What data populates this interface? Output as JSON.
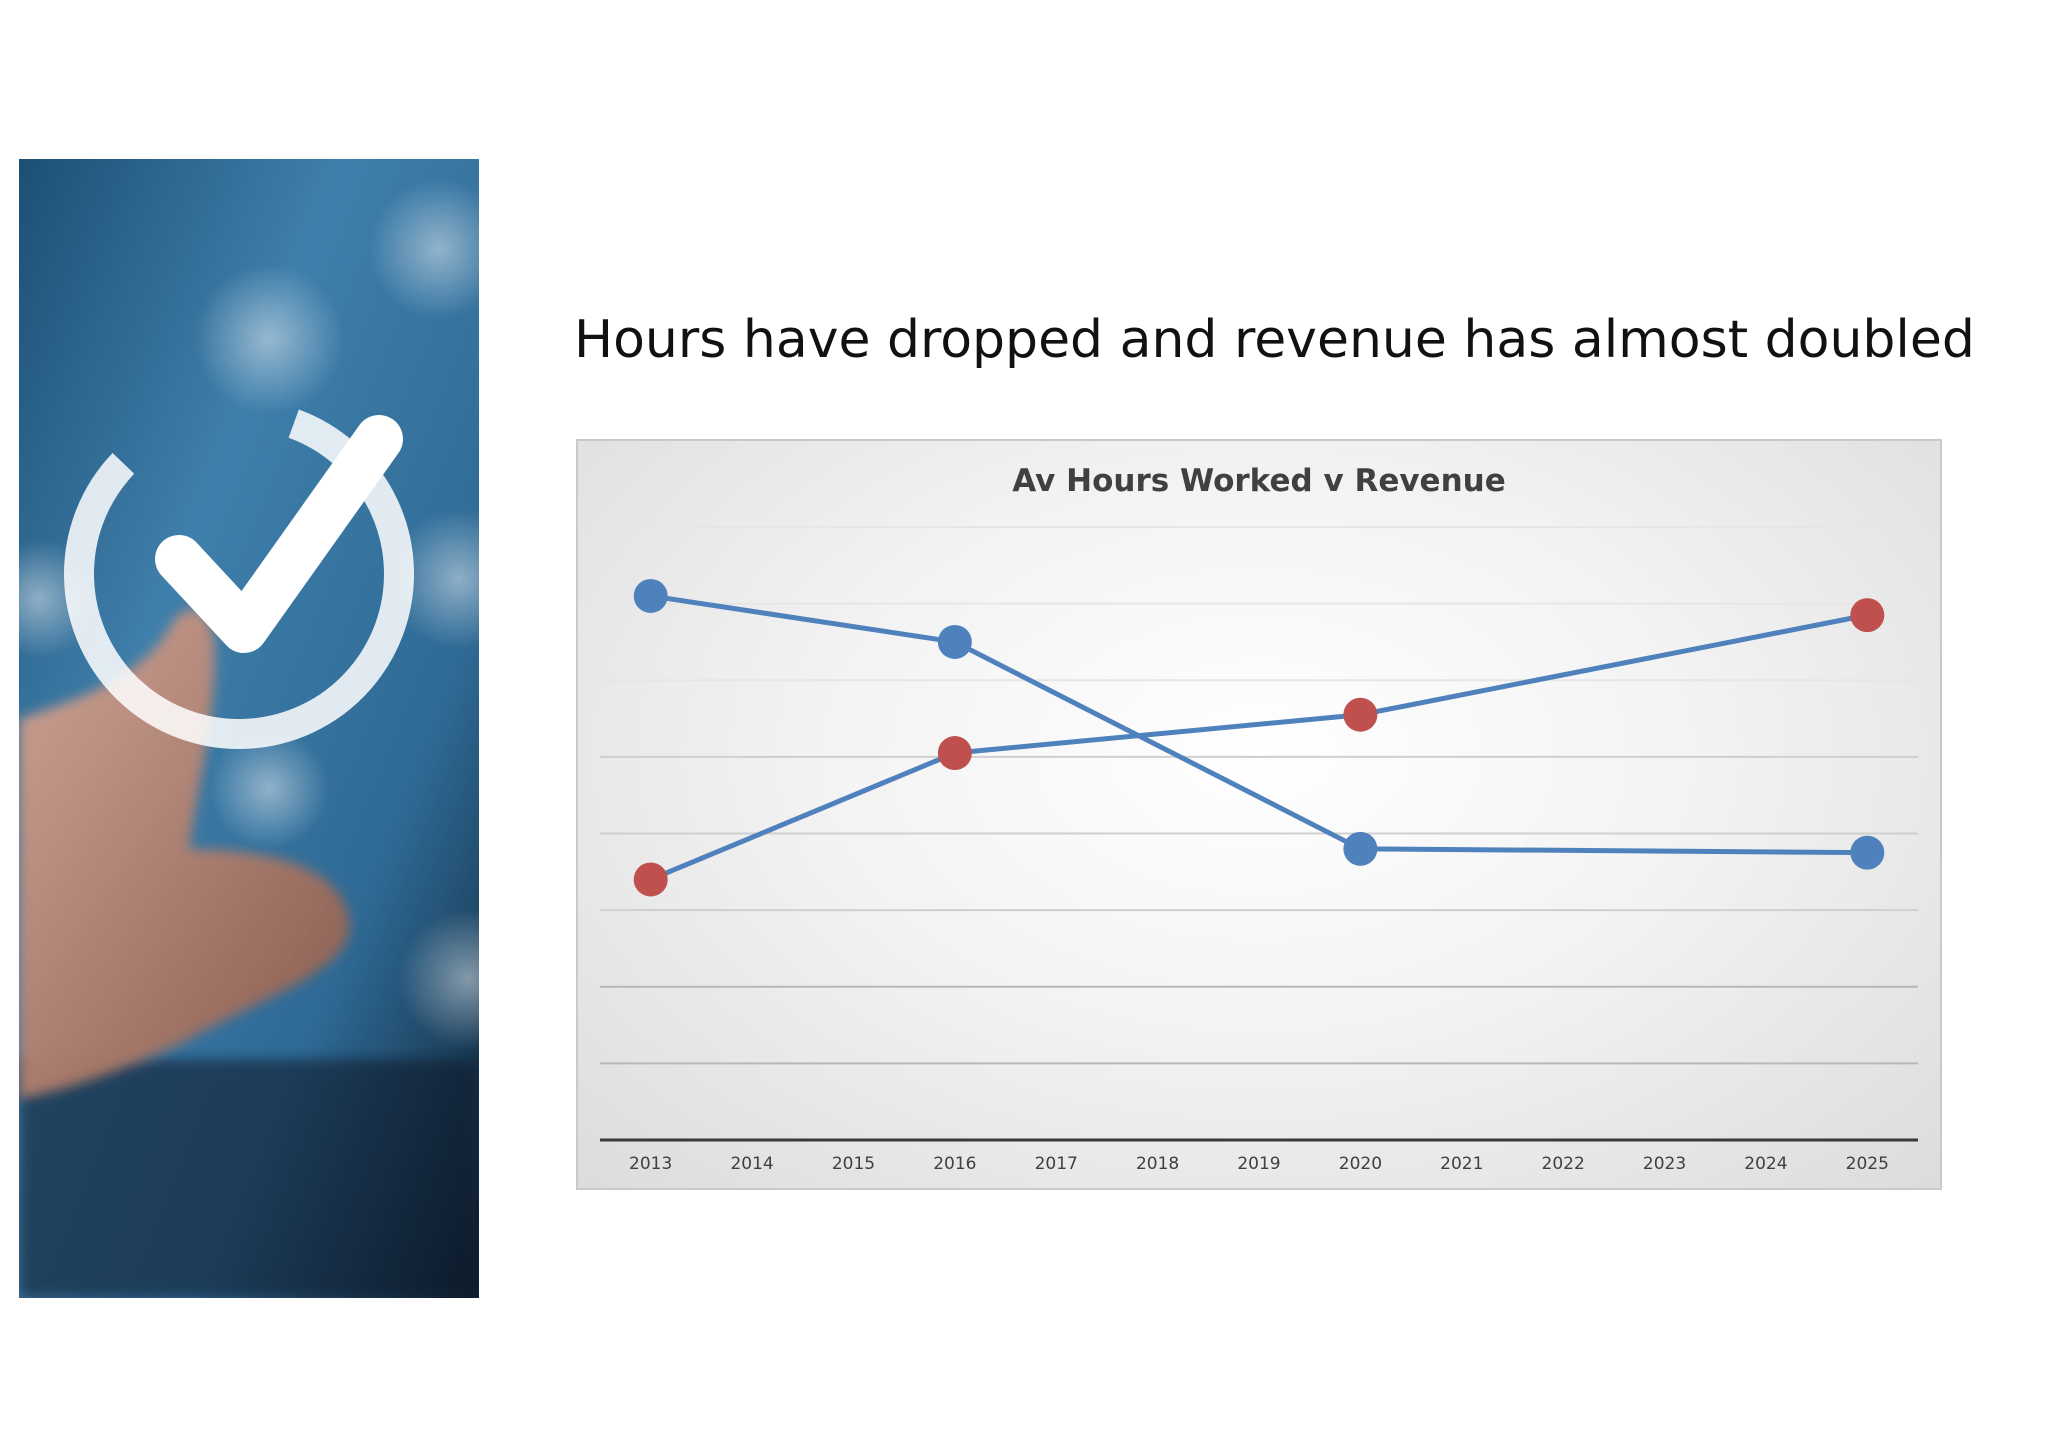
{
  "slide": {
    "title": "Hours have dropped and revenue has almost doubled"
  },
  "side_image": {
    "description_icon": "checkmark-touch-icon"
  },
  "chart_data": {
    "type": "line",
    "title": "Av Hours Worked v Revenue",
    "xlabel": "",
    "ylabel": "",
    "x": [
      2013,
      2014,
      2015,
      2016,
      2017,
      2018,
      2019,
      2020,
      2021,
      2022,
      2023,
      2024,
      2025
    ],
    "ylim": [
      0,
      8
    ],
    "grid": true,
    "legend": "none",
    "series": [
      {
        "color": "#4f81bd",
        "points": [
          {
            "x": 2013,
            "y": 7.1
          },
          {
            "x": 2016,
            "y": 6.5
          },
          {
            "x": 2020,
            "y": 3.8
          },
          {
            "x": 2025,
            "y": 3.75
          }
        ]
      },
      {
        "color": "#c0504d",
        "points": [
          {
            "x": 2013,
            "y": 3.4
          },
          {
            "x": 2016,
            "y": 5.05
          },
          {
            "x": 2020,
            "y": 5.55
          },
          {
            "x": 2025,
            "y": 6.85
          }
        ]
      }
    ]
  }
}
